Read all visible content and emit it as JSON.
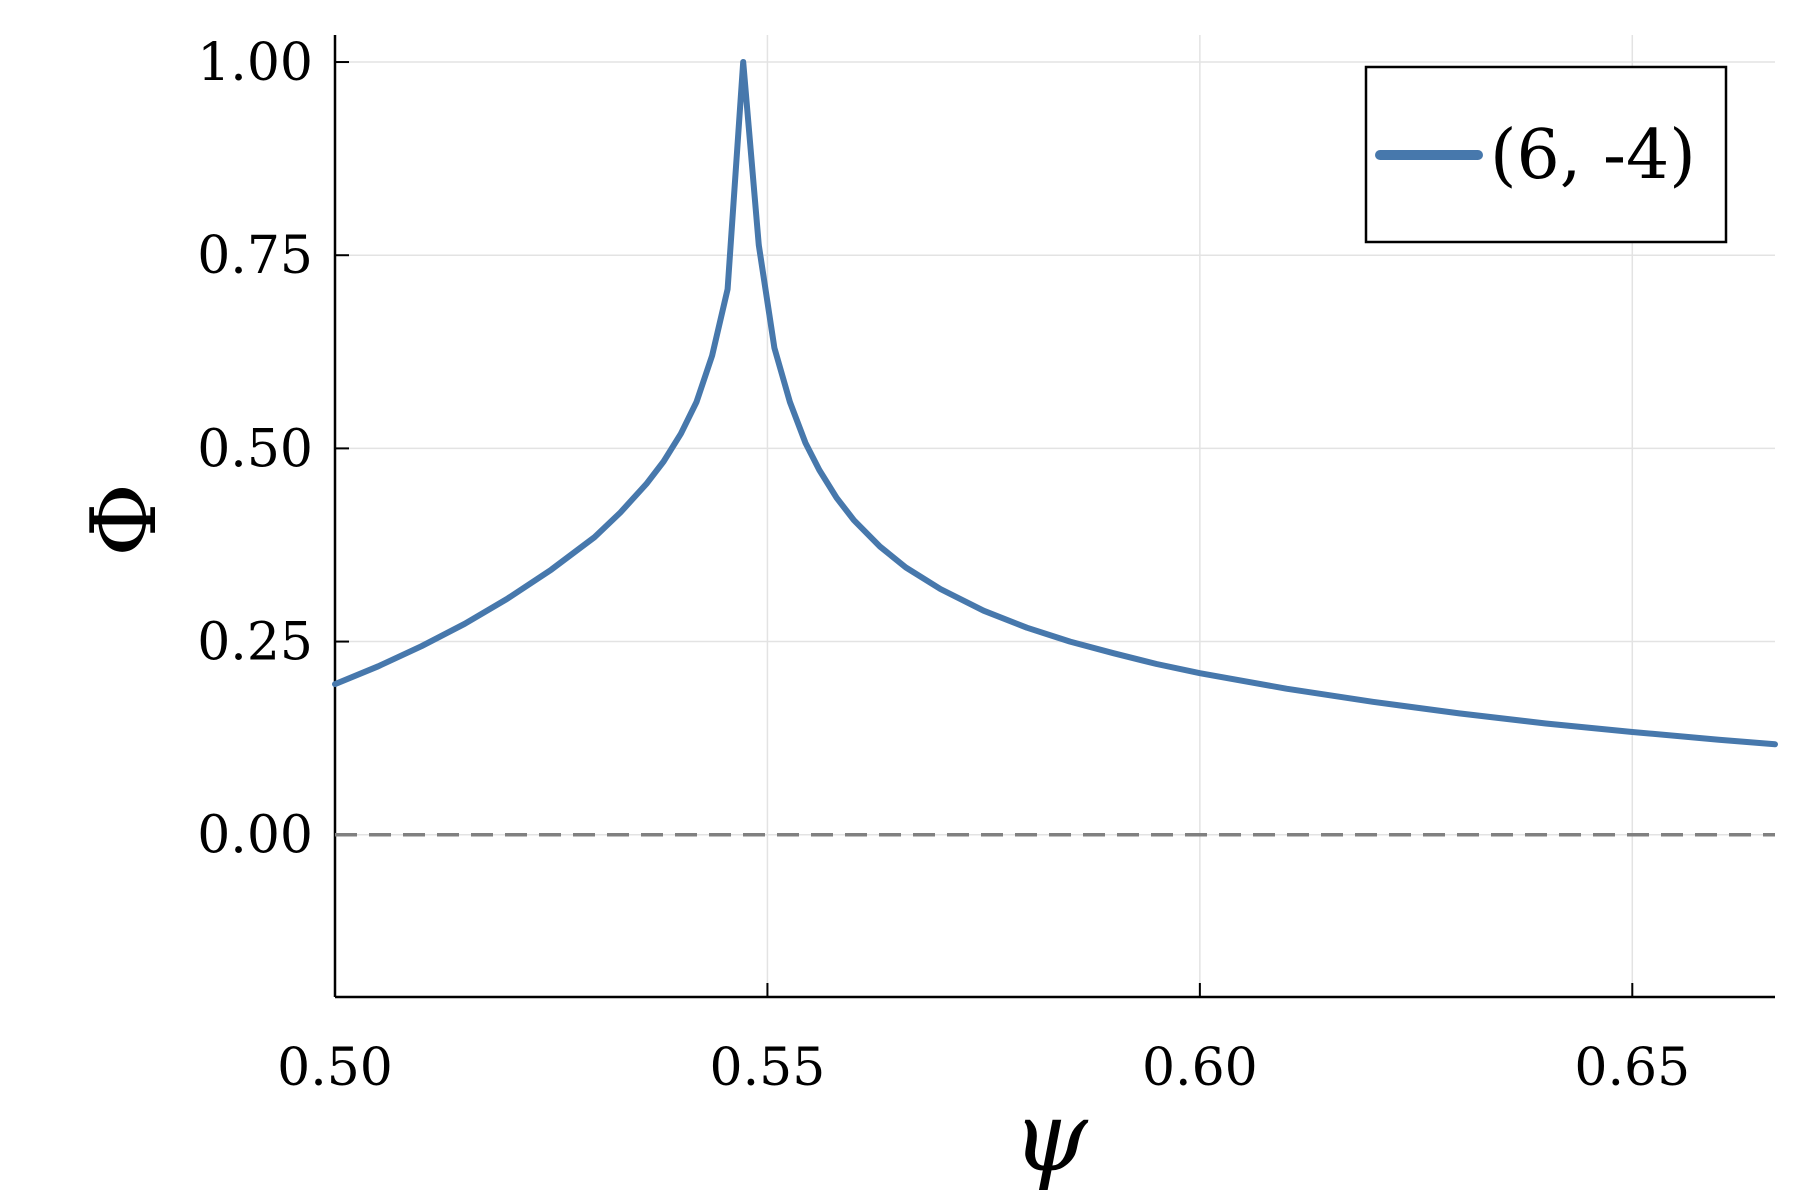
{
  "chart_data": {
    "type": "line",
    "title": "",
    "xlabel": "ψ",
    "ylabel": "Φ",
    "xlim": [
      0.5,
      0.6665
    ],
    "ylim": [
      -0.21,
      1.035
    ],
    "grid": true,
    "legend_position": "top-right",
    "x_ticks": [
      0.5,
      0.55,
      0.6,
      0.65
    ],
    "x_tick_labels": [
      "0.50",
      "0.55",
      "0.60",
      "0.65"
    ],
    "y_ticks": [
      0.0,
      0.25,
      0.5,
      0.75,
      1.0
    ],
    "y_tick_labels": [
      "0.00",
      "0.25",
      "0.50",
      "0.75",
      "1.00"
    ],
    "reference_line": {
      "y": 0.0,
      "style": "dashed",
      "color": "#808080"
    },
    "series": [
      {
        "name": "(6, -4)",
        "color": "#4778ac",
        "x": [
          0.5,
          0.505,
          0.51,
          0.515,
          0.52,
          0.525,
          0.53,
          0.533,
          0.536,
          0.538,
          0.54,
          0.5418,
          0.5436,
          0.5454,
          0.5472,
          0.549,
          0.5508,
          0.5526,
          0.5544,
          0.556,
          0.558,
          0.56,
          0.563,
          0.566,
          0.57,
          0.575,
          0.58,
          0.585,
          0.59,
          0.595,
          0.6,
          0.61,
          0.62,
          0.63,
          0.64,
          0.65,
          0.66,
          0.6665
        ],
        "y": [
          0.195,
          0.218,
          0.244,
          0.273,
          0.306,
          0.343,
          0.385,
          0.417,
          0.454,
          0.483,
          0.519,
          0.56,
          0.62,
          0.706,
          1.0,
          0.763,
          0.63,
          0.56,
          0.507,
          0.472,
          0.436,
          0.407,
          0.373,
          0.346,
          0.318,
          0.29,
          0.268,
          0.25,
          0.235,
          0.221,
          0.209,
          0.189,
          0.172,
          0.157,
          0.144,
          0.133,
          0.123,
          0.117
        ]
      }
    ]
  }
}
